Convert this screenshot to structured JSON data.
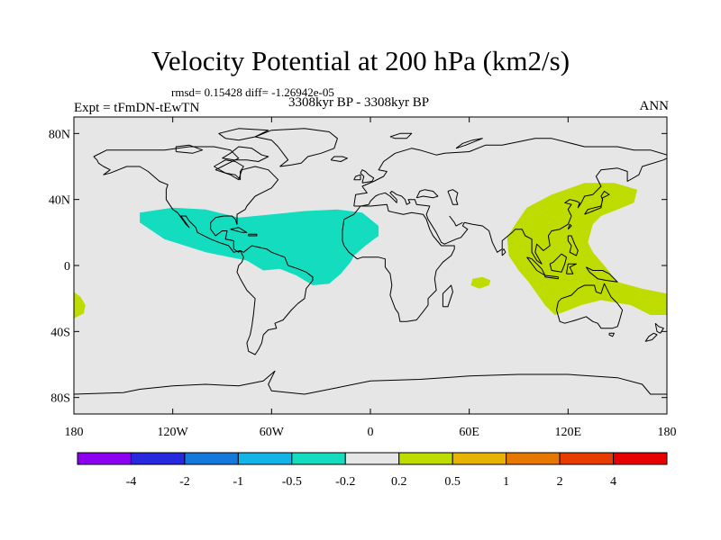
{
  "title": "Velocity Potential at 200 hPa (km2/s)",
  "stats_line": "rmsd= 0.15428 diff= -1.26942e-05",
  "experiment": "Expt = tFmDN-tEwTN",
  "period": "3308kyr BP - 3308kyr BP",
  "season": "ANN",
  "chart_data": {
    "type": "filled contour map",
    "variable": "Velocity Potential at 200 hPa",
    "units": "km2/s",
    "projection": "cylindrical equidistant",
    "x_range": [
      -180,
      180
    ],
    "y_range": [
      -90,
      90
    ],
    "x_ticks": [
      {
        "value": -180,
        "label": "180"
      },
      {
        "value": -120,
        "label": "120W"
      },
      {
        "value": -60,
        "label": "60W"
      },
      {
        "value": 0,
        "label": "0"
      },
      {
        "value": 60,
        "label": "60E"
      },
      {
        "value": 120,
        "label": "120E"
      },
      {
        "value": 180,
        "label": "180"
      }
    ],
    "y_ticks": [
      {
        "value": 80,
        "label": "80N"
      },
      {
        "value": 40,
        "label": "40N"
      },
      {
        "value": 0,
        "label": "0"
      },
      {
        "value": -40,
        "label": "40S"
      },
      {
        "value": -80,
        "label": "80S"
      }
    ],
    "colorbar": {
      "colors": [
        "#8c00f0",
        "#2828dc",
        "#1478dc",
        "#14b4e6",
        "#14dcbe",
        "#e6e6e6",
        "#bedc00",
        "#e6b400",
        "#e67800",
        "#e63c00",
        "#e60000"
      ],
      "boundaries": [
        -4,
        -2,
        -1,
        -0.5,
        -0.2,
        0.2,
        0.5,
        1,
        2,
        4
      ],
      "labels": [
        "-4",
        "-2",
        "-1",
        "-0.5",
        "-0.2",
        "0.2",
        "0.5",
        "1",
        "2",
        "4"
      ]
    },
    "regions": [
      {
        "name": "tropical Atlantic / Americas negative anomaly",
        "range": "-0.5 to -0.2",
        "color": "#14dcbe",
        "polygon": [
          [
            -140,
            32
          ],
          [
            -120,
            35
          ],
          [
            -100,
            34
          ],
          [
            -80,
            29
          ],
          [
            -60,
            31
          ],
          [
            -40,
            33
          ],
          [
            -20,
            34
          ],
          [
            -5,
            32
          ],
          [
            5,
            24
          ],
          [
            5,
            18
          ],
          [
            -3,
            12
          ],
          [
            -10,
            6
          ],
          [
            -12,
            2
          ],
          [
            -18,
            -5
          ],
          [
            -25,
            -11
          ],
          [
            -35,
            -12
          ],
          [
            -45,
            -6
          ],
          [
            -55,
            -2
          ],
          [
            -65,
            -3
          ],
          [
            -75,
            3
          ],
          [
            -100,
            8
          ],
          [
            -125,
            16
          ],
          [
            -140,
            26
          ]
        ]
      },
      {
        "name": "western Pacific / Indo-Pacific positive anomaly",
        "range": "0.2 to 0.5",
        "color": "#bedc00",
        "polygon": [
          [
            88,
            25
          ],
          [
            95,
            35
          ],
          [
            110,
            43
          ],
          [
            130,
            50
          ],
          [
            148,
            50
          ],
          [
            162,
            46
          ],
          [
            160,
            38
          ],
          [
            150,
            34
          ],
          [
            140,
            30
          ],
          [
            135,
            25
          ],
          [
            132,
            14
          ],
          [
            135,
            8
          ],
          [
            142,
            0
          ],
          [
            150,
            -10
          ],
          [
            165,
            -14
          ],
          [
            180,
            -17
          ],
          [
            180,
            -30
          ],
          [
            170,
            -30
          ],
          [
            158,
            -24
          ],
          [
            140,
            -21
          ],
          [
            128,
            -24
          ],
          [
            118,
            -28
          ],
          [
            112,
            -30
          ],
          [
            106,
            -24
          ],
          [
            96,
            -10
          ],
          [
            90,
            -3
          ],
          [
            84,
            6
          ],
          [
            83,
            17
          ]
        ]
      },
      {
        "name": "Indian Ocean positive patch",
        "range": "0.2 to 0.5",
        "color": "#bedc00",
        "polygon": [
          [
            62,
            -8
          ],
          [
            68,
            -7
          ],
          [
            73,
            -9
          ],
          [
            72,
            -12
          ],
          [
            66,
            -14
          ],
          [
            61,
            -12
          ]
        ]
      },
      {
        "name": "dateline southern patch",
        "range": "0.2 to 0.5",
        "color": "#bedc00",
        "polygon": [
          [
            -180,
            -16
          ],
          [
            -176,
            -19
          ],
          [
            -173,
            -24
          ],
          [
            -174,
            -29
          ],
          [
            -180,
            -32
          ]
        ]
      }
    ]
  }
}
